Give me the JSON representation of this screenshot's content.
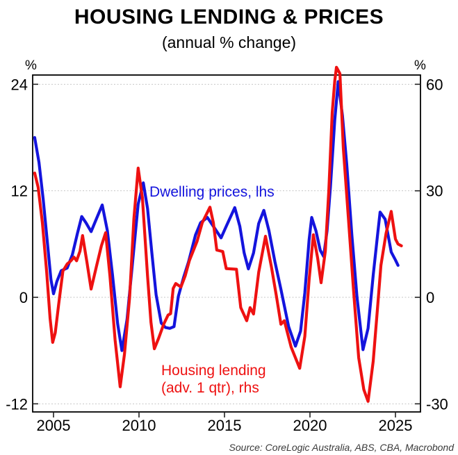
{
  "title": "HOUSING LENDING & PRICES",
  "subtitle": "(annual % change)",
  "axes": {
    "left_unit": "%",
    "right_unit": "%",
    "left_ticks": [
      24,
      12,
      0,
      -12
    ],
    "right_ticks": [
      60,
      30,
      0,
      -30
    ],
    "x_ticks": [
      2005,
      2010,
      2015,
      2020,
      2025
    ]
  },
  "series_labels": {
    "dwelling": "Dwelling prices, lhs",
    "lending_line1": "Housing lending",
    "lending_line2": "(adv. 1 qtr), rhs"
  },
  "source": "Source: CoreLogic Australia, ABS, CBA, Macrobond",
  "colors": {
    "dwelling": "#1414dd",
    "lending": "#ee1111",
    "grid": "#c5c5c5",
    "frame": "#000000",
    "tick": "#222222",
    "axis_text": "#000000"
  },
  "chart_data": {
    "type": "line",
    "title": "HOUSING LENDING & PRICES",
    "subtitle": "(annual % change)",
    "grid": "dotted horizontal gridlines at shared tick levels",
    "legend_position": "in-plot text labels",
    "x_axis": {
      "ticks": [
        2005,
        2010,
        2015,
        2020,
        2025
      ],
      "range": [
        2003.8,
        2026.5
      ]
    },
    "y_axis_left": {
      "unit": "%",
      "ticks": [
        24,
        12,
        0,
        -12
      ],
      "range": [
        -12.9,
        25.0
      ]
    },
    "y_axis_right": {
      "unit": "%",
      "ticks": [
        60,
        30,
        0,
        -30
      ],
      "range": [
        -32.3,
        62.6
      ]
    },
    "series": [
      {
        "name": "Dwelling prices, lhs",
        "axis": "left",
        "color": "#1414dd",
        "points": [
          [
            2003.9,
            18.0
          ],
          [
            2004.15,
            15.2
          ],
          [
            2004.4,
            11.0
          ],
          [
            2004.65,
            6.0
          ],
          [
            2004.85,
            2.0
          ],
          [
            2005.0,
            0.4
          ],
          [
            2005.2,
            1.8
          ],
          [
            2005.45,
            3.0
          ],
          [
            2005.8,
            3.3
          ],
          [
            2006.1,
            4.8
          ],
          [
            2006.4,
            7.2
          ],
          [
            2006.65,
            9.1
          ],
          [
            2006.9,
            8.4
          ],
          [
            2007.2,
            7.4
          ],
          [
            2007.5,
            8.8
          ],
          [
            2007.85,
            10.4
          ],
          [
            2008.15,
            7.5
          ],
          [
            2008.45,
            2.5
          ],
          [
            2008.75,
            -3.0
          ],
          [
            2009.0,
            -6.0
          ],
          [
            2009.3,
            -2.5
          ],
          [
            2009.6,
            3.5
          ],
          [
            2009.95,
            10.5
          ],
          [
            2010.25,
            12.9
          ],
          [
            2010.5,
            10.0
          ],
          [
            2010.75,
            5.0
          ],
          [
            2011.0,
            0.3
          ],
          [
            2011.3,
            -2.9
          ],
          [
            2011.55,
            -3.4
          ],
          [
            2011.8,
            -3.5
          ],
          [
            2012.05,
            -3.3
          ],
          [
            2012.3,
            0.1
          ],
          [
            2012.6,
            2.2
          ],
          [
            2012.9,
            4.0
          ],
          [
            2013.3,
            7.0
          ],
          [
            2013.6,
            8.4
          ],
          [
            2014.0,
            9.0
          ],
          [
            2014.35,
            8.0
          ],
          [
            2014.8,
            6.7
          ],
          [
            2015.1,
            8.0
          ],
          [
            2015.6,
            10.1
          ],
          [
            2015.9,
            8.0
          ],
          [
            2016.15,
            5.0
          ],
          [
            2016.4,
            3.2
          ],
          [
            2016.7,
            5.0
          ],
          [
            2017.0,
            8.3
          ],
          [
            2017.3,
            9.8
          ],
          [
            2017.6,
            7.5
          ],
          [
            2017.95,
            4.0
          ],
          [
            2018.3,
            0.9
          ],
          [
            2018.75,
            -3.3
          ],
          [
            2019.15,
            -5.5
          ],
          [
            2019.45,
            -3.8
          ],
          [
            2019.7,
            0.5
          ],
          [
            2019.95,
            6.5
          ],
          [
            2020.1,
            9.0
          ],
          [
            2020.35,
            7.5
          ],
          [
            2020.6,
            5.3
          ],
          [
            2020.8,
            4.6
          ],
          [
            2021.0,
            7.5
          ],
          [
            2021.2,
            12.5
          ],
          [
            2021.45,
            20.0
          ],
          [
            2021.65,
            24.3
          ],
          [
            2021.9,
            20.5
          ],
          [
            2022.15,
            15.0
          ],
          [
            2022.45,
            7.0
          ],
          [
            2022.75,
            0.0
          ],
          [
            2023.1,
            -5.9
          ],
          [
            2023.4,
            -3.5
          ],
          [
            2023.7,
            2.5
          ],
          [
            2023.95,
            7.0
          ],
          [
            2024.1,
            9.6
          ],
          [
            2024.4,
            8.8
          ],
          [
            2024.75,
            5.1
          ],
          [
            2025.0,
            4.2
          ],
          [
            2025.15,
            3.6
          ]
        ]
      },
      {
        "name": "Housing lending (adv. 1 qtr), rhs",
        "axis": "right",
        "color": "#ee1111",
        "points": [
          [
            2003.9,
            35.0
          ],
          [
            2004.1,
            31.0
          ],
          [
            2004.35,
            21.0
          ],
          [
            2004.6,
            7.0
          ],
          [
            2004.8,
            -6.0
          ],
          [
            2004.95,
            -12.7
          ],
          [
            2005.1,
            -10.0
          ],
          [
            2005.3,
            -2.0
          ],
          [
            2005.55,
            7.4
          ],
          [
            2005.8,
            9.4
          ],
          [
            2006.0,
            10.2
          ],
          [
            2006.2,
            11.3
          ],
          [
            2006.35,
            10.3
          ],
          [
            2006.55,
            13.0
          ],
          [
            2006.7,
            17.4
          ],
          [
            2006.95,
            10.0
          ],
          [
            2007.2,
            2.3
          ],
          [
            2007.5,
            8.5
          ],
          [
            2007.8,
            14.5
          ],
          [
            2008.05,
            18.2
          ],
          [
            2008.3,
            6.0
          ],
          [
            2008.6,
            -12.0
          ],
          [
            2008.9,
            -25.2
          ],
          [
            2009.15,
            -16.0
          ],
          [
            2009.45,
            0.0
          ],
          [
            2009.7,
            22.0
          ],
          [
            2009.95,
            36.4
          ],
          [
            2010.2,
            28.0
          ],
          [
            2010.5,
            6.0
          ],
          [
            2010.7,
            -7.0
          ],
          [
            2010.9,
            -14.5
          ],
          [
            2011.15,
            -11.5
          ],
          [
            2011.45,
            -7.5
          ],
          [
            2011.7,
            -5.0
          ],
          [
            2011.85,
            -4.6
          ],
          [
            2012.0,
            2.5
          ],
          [
            2012.15,
            3.9
          ],
          [
            2012.45,
            2.9
          ],
          [
            2012.7,
            6.0
          ],
          [
            2012.95,
            10.4
          ],
          [
            2013.4,
            15.8
          ],
          [
            2013.7,
            21.0
          ],
          [
            2014.15,
            25.4
          ],
          [
            2014.35,
            21.0
          ],
          [
            2014.55,
            13.3
          ],
          [
            2014.9,
            12.9
          ],
          [
            2015.1,
            8.1
          ],
          [
            2015.7,
            7.9
          ],
          [
            2015.95,
            -2.9
          ],
          [
            2016.3,
            -6.6
          ],
          [
            2016.5,
            -2.9
          ],
          [
            2016.7,
            -4.7
          ],
          [
            2017.0,
            7.0
          ],
          [
            2017.4,
            17.2
          ],
          [
            2017.75,
            8.4
          ],
          [
            2018.05,
            0.0
          ],
          [
            2018.3,
            -7.6
          ],
          [
            2018.5,
            -6.6
          ],
          [
            2018.9,
            -14.0
          ],
          [
            2019.4,
            -20.0
          ],
          [
            2019.7,
            -11.0
          ],
          [
            2019.95,
            5.0
          ],
          [
            2020.2,
            17.6
          ],
          [
            2020.45,
            11.0
          ],
          [
            2020.65,
            4.1
          ],
          [
            2020.9,
            13.0
          ],
          [
            2021.1,
            30.0
          ],
          [
            2021.3,
            52.0
          ],
          [
            2021.45,
            61.0
          ],
          [
            2021.55,
            64.8
          ],
          [
            2021.75,
            63.0
          ],
          [
            2021.95,
            42.0
          ],
          [
            2022.25,
            22.0
          ],
          [
            2022.55,
            2.0
          ],
          [
            2022.85,
            -17.0
          ],
          [
            2023.15,
            -26.0
          ],
          [
            2023.4,
            -29.3
          ],
          [
            2023.7,
            -18.0
          ],
          [
            2023.95,
            -3.0
          ],
          [
            2024.15,
            9.0
          ],
          [
            2024.45,
            18.0
          ],
          [
            2024.75,
            24.2
          ],
          [
            2025.0,
            16.4
          ],
          [
            2025.15,
            15.0
          ],
          [
            2025.35,
            14.5
          ]
        ]
      }
    ]
  }
}
